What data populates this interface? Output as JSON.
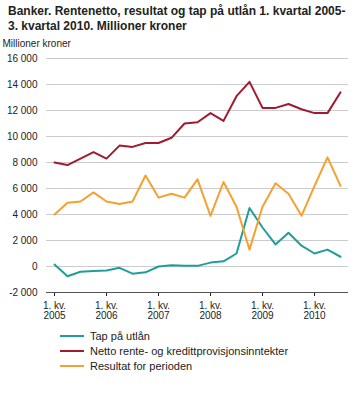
{
  "chart_data": {
    "type": "line",
    "title": "Banker. Rentenetto, resultat og tap på utlån 1. kvartal 2005-3. kvartal 2010. Millioner kroner",
    "y_label": "Millioner kroner",
    "categories": [
      "1. kv.\n2005",
      null,
      null,
      null,
      "1. kv.\n2006",
      null,
      null,
      null,
      "1. kv.\n2007",
      null,
      null,
      null,
      "1. kv.\n2008",
      null,
      null,
      null,
      "1. kv.\n2009",
      null,
      null,
      null,
      "1. kv.\n2010",
      null,
      null
    ],
    "series": [
      {
        "name": "Tap på utlån",
        "color": "#1f9e99",
        "values": [
          150,
          -750,
          -400,
          -350,
          -300,
          -100,
          -550,
          -450,
          0,
          100,
          50,
          50,
          300,
          400,
          1000,
          4500,
          3000,
          1700,
          2600,
          1600,
          1000,
          1300,
          750
        ]
      },
      {
        "name": "Netto rente- og kredittprovisjonsinntekter",
        "color": "#a01a30",
        "values": [
          8000,
          7800,
          8300,
          8800,
          8300,
          9300,
          9200,
          9500,
          9500,
          9900,
          11000,
          11100,
          11800,
          11200,
          13100,
          14200,
          12200,
          12200,
          12500,
          12100,
          11800,
          11800,
          13400
        ]
      },
      {
        "name": "Resultat for perioden",
        "color": "#f5a131",
        "values": [
          4000,
          4900,
          5000,
          5700,
          5000,
          4800,
          5000,
          7000,
          5300,
          5600,
          5300,
          6700,
          3900,
          6500,
          4600,
          1300,
          4600,
          6400,
          5600,
          3900,
          6200,
          8400,
          6200
        ]
      }
    ],
    "ylim": [
      -2000,
      16000
    ],
    "yticks": [
      {
        "value": -2000,
        "label": "-2 000"
      },
      0,
      {
        "value": 2000,
        "label": "2 000"
      },
      {
        "value": 4000,
        "label": "4 000"
      },
      {
        "value": 6000,
        "label": "6 000"
      },
      {
        "value": 8000,
        "label": "8 000"
      },
      {
        "value": 10000,
        "label": "10 000"
      },
      {
        "value": 12000,
        "label": "12 000"
      },
      {
        "value": 14000,
        "label": "14 000"
      },
      {
        "value": 16000,
        "label": "16 000"
      }
    ],
    "grid": true
  }
}
